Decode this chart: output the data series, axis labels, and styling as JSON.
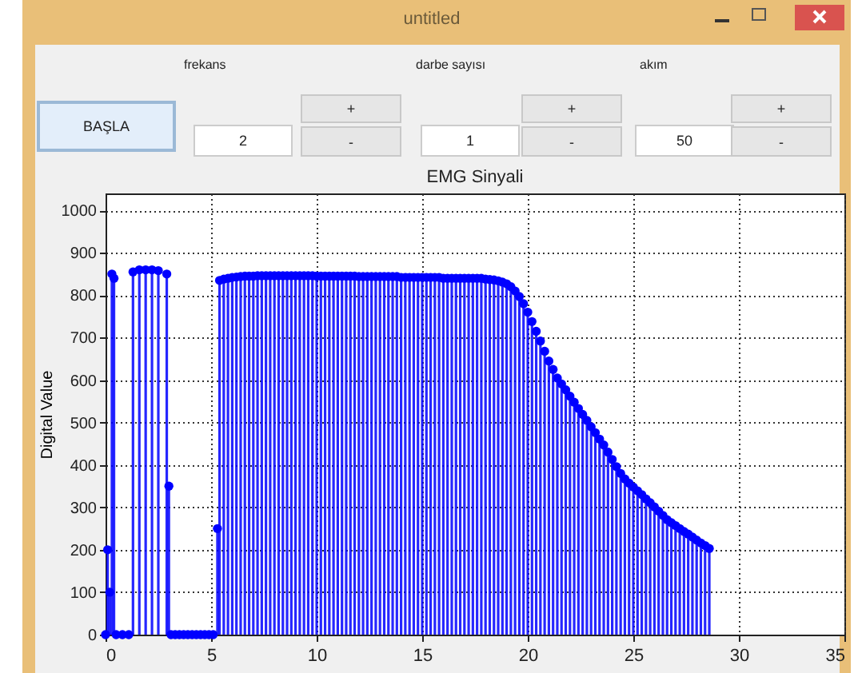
{
  "chart_data": {
    "type": "lollipop",
    "title": "EMG Sinyali",
    "ylabel": "Digital Value",
    "annotations": [
      "untitled",
      "BAŞLA",
      "frekans",
      "darbe sayısı",
      "akım",
      "2",
      "1",
      "50",
      "+",
      "-"
    ],
    "x": [
      0,
      0.1,
      0.2,
      0.3,
      0.4,
      0.5,
      0.8,
      1.1,
      1.3,
      1.6,
      1.9,
      2.2,
      2.5,
      2.9,
      3.0,
      3.1,
      3.3,
      3.5,
      3.7,
      3.9,
      4.1,
      4.3,
      4.5,
      4.7,
      4.9,
      5.1,
      5.3,
      5.4,
      5.6,
      5.8,
      6.0,
      6.2,
      6.4,
      6.6,
      6.8,
      7.0,
      7.2,
      7.4,
      7.6,
      7.8,
      8.0,
      8.2,
      8.4,
      8.6,
      8.8,
      9.0,
      9.2,
      9.4,
      9.6,
      9.8,
      10.0,
      10.2,
      10.4,
      10.6,
      10.8,
      11.0,
      11.2,
      11.4,
      11.6,
      11.8,
      12.0,
      12.2,
      12.4,
      12.6,
      12.8,
      13.0,
      13.2,
      13.4,
      13.6,
      13.8,
      14.0,
      14.2,
      14.4,
      14.6,
      14.8,
      15.0,
      15.2,
      15.4,
      15.6,
      15.8,
      16.0,
      16.2,
      16.4,
      16.6,
      16.8,
      17.0,
      17.2,
      17.4,
      17.6,
      17.8,
      18.0,
      18.2,
      18.4,
      18.6,
      18.8,
      19.0,
      19.2,
      19.4,
      19.6,
      19.8,
      20.0,
      20.2,
      20.4,
      20.6,
      20.8,
      21.0,
      21.2,
      21.4,
      21.6,
      21.8,
      22.0,
      22.2,
      22.4,
      22.6,
      22.8,
      23.0,
      23.2,
      23.4,
      23.6,
      23.8,
      24.0,
      24.2,
      24.4,
      24.6,
      24.8,
      25.0,
      25.2,
      25.4,
      25.6,
      25.8,
      26.0,
      26.2,
      26.4,
      26.6,
      26.8,
      27.0,
      27.2,
      27.4,
      27.6,
      27.8,
      28.0,
      28.2,
      28.4,
      28.6
    ],
    "series": [
      {
        "color": "#0000ff",
        "values": [
          0,
          200,
          100,
          850,
          840,
          0,
          0,
          0,
          855,
          860,
          860,
          860,
          858,
          850,
          350,
          0,
          0,
          0,
          0,
          0,
          0,
          0,
          0,
          0,
          0,
          0,
          250,
          835,
          838,
          840,
          842,
          843,
          844,
          845,
          845,
          845,
          846,
          846,
          846,
          846,
          846,
          846,
          846,
          846,
          846,
          846,
          846,
          846,
          846,
          846,
          845,
          845,
          845,
          845,
          845,
          845,
          845,
          845,
          845,
          845,
          844,
          844,
          844,
          844,
          844,
          844,
          844,
          844,
          844,
          844,
          842,
          842,
          842,
          842,
          842,
          842,
          842,
          842,
          842,
          842,
          840,
          840,
          840,
          840,
          840,
          840,
          840,
          840,
          840,
          840,
          838,
          837,
          836,
          834,
          831,
          827,
          820,
          810,
          797,
          780,
          760,
          738,
          715,
          692,
          668,
          645,
          625,
          605,
          591,
          577,
          562,
          548,
          533,
          519,
          505,
          490,
          476,
          461,
          447,
          430,
          413,
          396,
          380,
          367,
          357,
          348,
          339,
          330,
          320,
          311,
          301,
          291,
          281,
          271,
          264,
          257,
          250,
          243,
          237,
          230,
          223,
          216,
          210,
          203
        ]
      }
    ],
    "xlim": [
      0,
      35
    ],
    "xticks": [
      0,
      5,
      10,
      15,
      20,
      25,
      30,
      35
    ],
    "ylim": [
      0,
      1040
    ],
    "yticks": [
      0,
      100,
      200,
      300,
      400,
      500,
      600,
      700,
      800,
      900,
      1000
    ],
    "grid": true,
    "marker": "circle"
  }
}
